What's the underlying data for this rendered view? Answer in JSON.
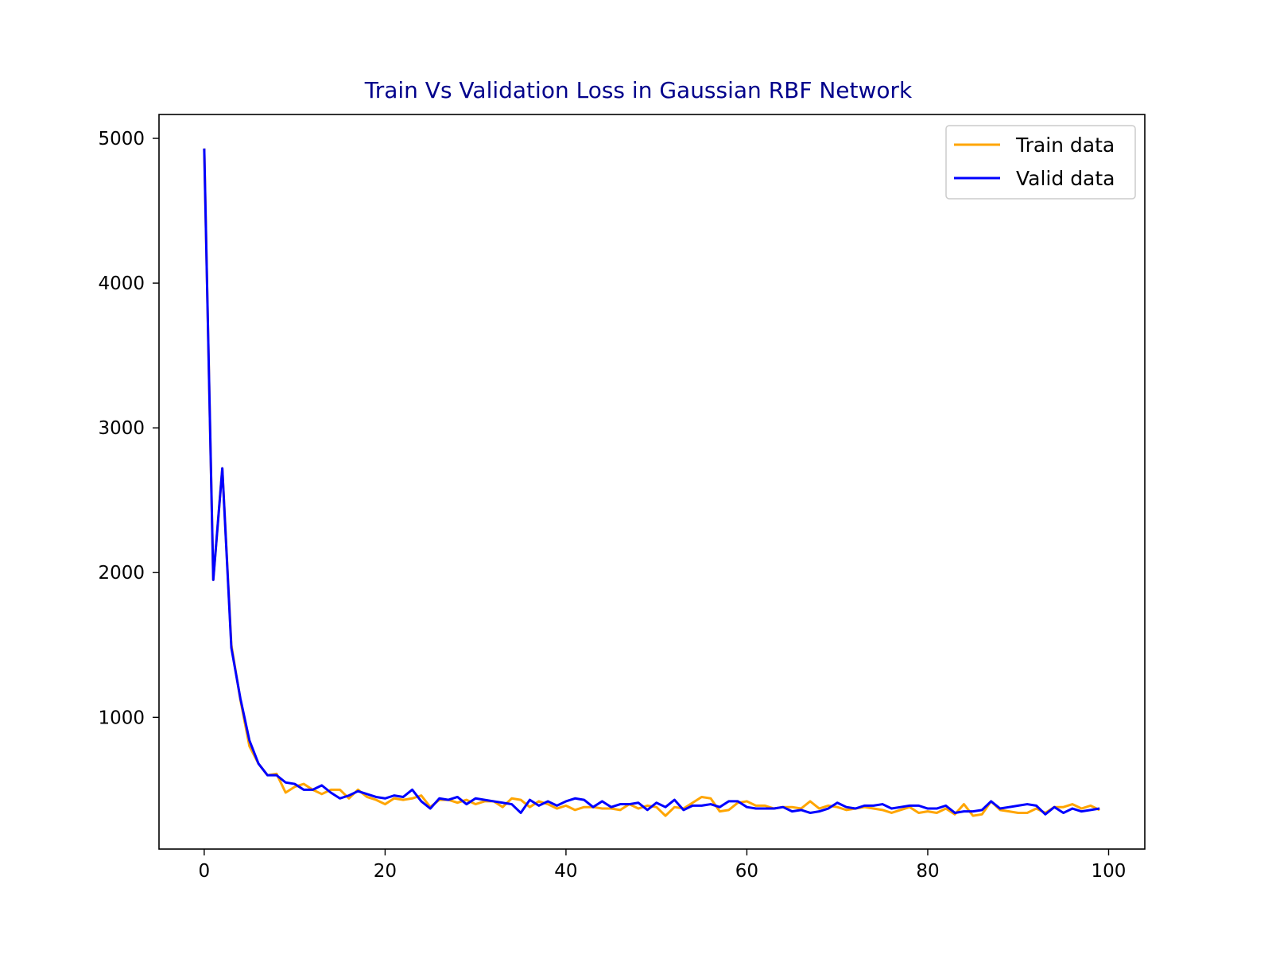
{
  "chart_data": {
    "type": "line",
    "title": "Train Vs Validation Loss in Gaussian RBF Network",
    "title_color": "#00008b",
    "xlabel": "",
    "ylabel": "",
    "xlim": [
      -5,
      104
    ],
    "ylim": [
      90,
      5165
    ],
    "xticks": [
      0,
      20,
      40,
      60,
      80,
      100
    ],
    "yticks": [
      1000,
      2000,
      3000,
      4000,
      5000
    ],
    "grid": false,
    "legend_position": "top-right",
    "series": [
      {
        "name": "Train data",
        "color": "#ffa500",
        "x": [
          0,
          1,
          2,
          3,
          4,
          5,
          6,
          7,
          8,
          9,
          10,
          11,
          12,
          13,
          14,
          15,
          16,
          17,
          18,
          19,
          20,
          21,
          22,
          23,
          24,
          25,
          26,
          27,
          28,
          29,
          30,
          31,
          32,
          33,
          34,
          35,
          36,
          37,
          38,
          39,
          40,
          41,
          42,
          43,
          44,
          45,
          46,
          47,
          48,
          49,
          50,
          51,
          52,
          53,
          54,
          55,
          56,
          57,
          58,
          59,
          60,
          61,
          62,
          63,
          64,
          65,
          66,
          67,
          68,
          69,
          70,
          71,
          72,
          73,
          74,
          75,
          76,
          77,
          78,
          79,
          80,
          81,
          82,
          83,
          84,
          85,
          86,
          87,
          88,
          89,
          90,
          91,
          92,
          93,
          94,
          95,
          96,
          97,
          98,
          99
        ],
        "y": [
          4930,
          1950,
          2720,
          1500,
          1120,
          800,
          680,
          600,
          610,
          480,
          520,
          540,
          500,
          470,
          500,
          500,
          440,
          500,
          450,
          430,
          400,
          440,
          430,
          440,
          460,
          380,
          430,
          430,
          410,
          430,
          400,
          420,
          420,
          380,
          440,
          430,
          380,
          420,
          400,
          370,
          390,
          360,
          380,
          380,
          370,
          370,
          360,
          400,
          370,
          390,
          380,
          320,
          380,
          370,
          410,
          450,
          440,
          350,
          360,
          410,
          420,
          390,
          390,
          370,
          380,
          380,
          370,
          420,
          370,
          390,
          380,
          360,
          370,
          380,
          370,
          360,
          340,
          360,
          380,
          340,
          350,
          340,
          370,
          330,
          400,
          320,
          330,
          420,
          360,
          350,
          340,
          340,
          370,
          340,
          380,
          380,
          400,
          370,
          390,
          360
        ]
      },
      {
        "name": "Valid data",
        "color": "#0000ff",
        "x": [
          0,
          1,
          2,
          3,
          4,
          5,
          6,
          7,
          8,
          9,
          10,
          11,
          12,
          13,
          14,
          15,
          16,
          17,
          18,
          19,
          20,
          21,
          22,
          23,
          24,
          25,
          26,
          27,
          28,
          29,
          30,
          31,
          32,
          33,
          34,
          35,
          36,
          37,
          38,
          39,
          40,
          41,
          42,
          43,
          44,
          45,
          46,
          47,
          48,
          49,
          50,
          51,
          52,
          53,
          54,
          55,
          56,
          57,
          58,
          59,
          60,
          61,
          62,
          63,
          64,
          65,
          66,
          67,
          68,
          69,
          70,
          71,
          72,
          73,
          74,
          75,
          76,
          77,
          78,
          79,
          80,
          81,
          82,
          83,
          84,
          85,
          86,
          87,
          88,
          89,
          90,
          91,
          92,
          93,
          94,
          95,
          96,
          97,
          98,
          99
        ],
        "y": [
          4930,
          1950,
          2720,
          1480,
          1130,
          840,
          680,
          600,
          600,
          550,
          540,
          500,
          500,
          530,
          480,
          440,
          460,
          490,
          470,
          450,
          440,
          460,
          450,
          500,
          420,
          370,
          440,
          430,
          450,
          400,
          440,
          430,
          420,
          410,
          400,
          340,
          430,
          390,
          420,
          390,
          420,
          440,
          430,
          380,
          420,
          380,
          400,
          400,
          410,
          360,
          410,
          380,
          430,
          360,
          390,
          390,
          400,
          380,
          420,
          420,
          380,
          370,
          370,
          370,
          380,
          350,
          360,
          340,
          350,
          370,
          410,
          380,
          370,
          390,
          390,
          400,
          370,
          380,
          390,
          390,
          370,
          370,
          390,
          340,
          350,
          350,
          360,
          420,
          370,
          380,
          390,
          400,
          390,
          330,
          380,
          340,
          370,
          350,
          360,
          370
        ]
      }
    ]
  }
}
